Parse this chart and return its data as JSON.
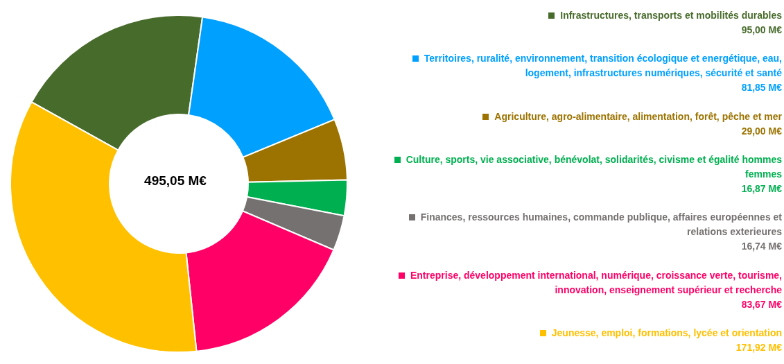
{
  "chart_data": {
    "type": "donut",
    "categories": [
      "Infrastructures, transports et mobilités durables",
      "Territoires, ruralité, environnement, transition écologique et energétique, eau, logement, infrastructures numériques, sécurité et santé",
      "Agriculture, agro-alimentaire, alimentation, forêt, pêche et mer",
      "Culture, sports, vie associative, bénévolat, solidarités, civisme et égalité hommes femmes",
      "Finances, ressources humaines, commande publique, affaires européennes et relations exterieures",
      "Entreprise, développement international, numérique, croissance verte, tourisme, innovation, enseignement supérieur et recherche",
      "Jeunesse, emploi, formations, lycée et orientation"
    ],
    "values": [
      95.0,
      81.85,
      29.0,
      16.87,
      16.74,
      83.67,
      171.92
    ],
    "value_labels": [
      "95,00 M€",
      "81,85 M€",
      "29,00 M€",
      "16,87 M€",
      "16,74 M€",
      "83,67 M€",
      "171,92 M€"
    ],
    "colors": [
      "#476b2b",
      "#00a0ff",
      "#9c7300",
      "#00b050",
      "#767171",
      "#ff0066",
      "#ffc000"
    ],
    "annotations": [
      "495,05 M€"
    ],
    "legend": "right"
  }
}
